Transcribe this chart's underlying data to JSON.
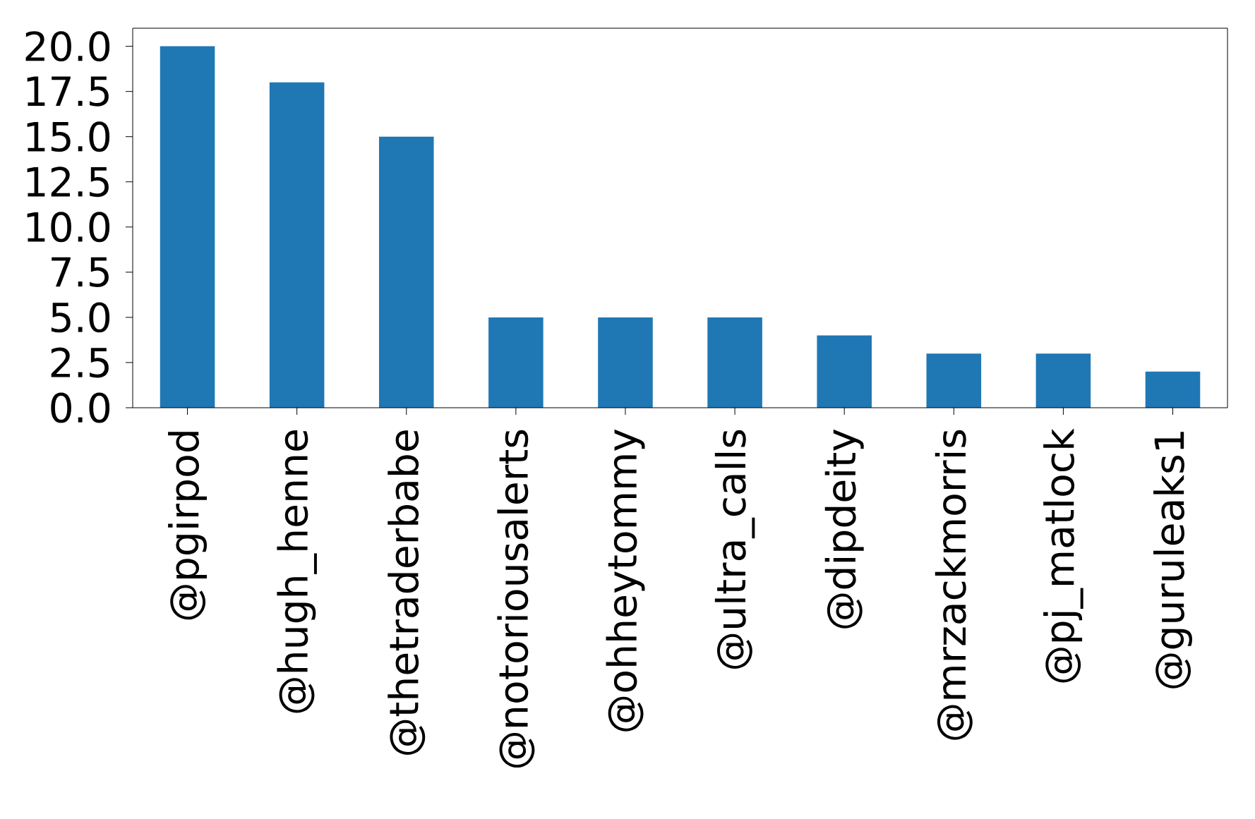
{
  "chart_data": {
    "type": "bar",
    "categories": [
      "@pgirpod",
      "@hugh_henne",
      "@thetraderbabe",
      "@notoriousalerts",
      "@ohheytommy",
      "@ultra_calls",
      "@dipdeity",
      "@mrzackmorris",
      "@pj_matlock",
      "@guruleaks1"
    ],
    "values": [
      20,
      18,
      15,
      5,
      5,
      5,
      4,
      3,
      3,
      2
    ],
    "color": "#1f77b4",
    "ylim": [
      0,
      21
    ],
    "yticks": [
      {
        "value": 0,
        "label": "0.0"
      },
      {
        "value": 2.5,
        "label": "2.5"
      },
      {
        "value": 5,
        "label": "5.0"
      },
      {
        "value": 7.5,
        "label": "7.5"
      },
      {
        "value": 10,
        "label": "10.0"
      },
      {
        "value": 12.5,
        "label": "12.5"
      },
      {
        "value": 15,
        "label": "15.0"
      },
      {
        "value": 17.5,
        "label": "17.5"
      },
      {
        "value": 20,
        "label": "20.0"
      }
    ]
  }
}
